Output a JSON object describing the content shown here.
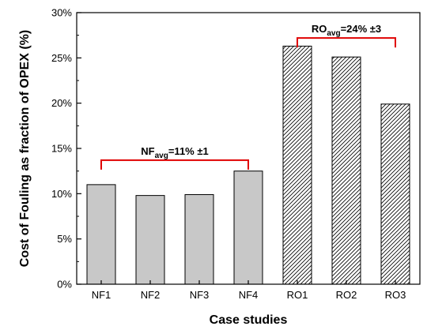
{
  "chart_data": {
    "type": "bar",
    "title": "",
    "xlabel": "Case studies",
    "ylabel": "Cost of Fouling as fraction of OPEX (%)",
    "categories": [
      "NF1",
      "NF2",
      "NF3",
      "NF4",
      "RO1",
      "RO2",
      "RO3"
    ],
    "values": [
      11.0,
      9.8,
      9.9,
      12.5,
      26.3,
      25.1,
      19.9
    ],
    "ylim": [
      0,
      30
    ],
    "y_ticks": [
      0,
      5,
      10,
      15,
      20,
      25,
      30
    ],
    "y_tick_labels": [
      "0%",
      "5%",
      "10%",
      "15%",
      "20%",
      "25%",
      "30%"
    ],
    "grid": false,
    "bar_styles": [
      "solid",
      "solid",
      "solid",
      "solid",
      "hatched",
      "hatched",
      "hatched"
    ],
    "colors": {
      "solid_fill": "#c8c8c8",
      "hatch_stroke": "#000000",
      "bracket": "#e00000"
    },
    "annotations": [
      {
        "main": "NF",
        "sub": "avg",
        "rest": "=11% ±1",
        "from": "NF1",
        "to": "NF4",
        "level": 13.7
      },
      {
        "main": "RO",
        "sub": "avg",
        "rest": "=24% ±3",
        "from": "RO1",
        "to": "RO3",
        "level": 27.2
      }
    ]
  }
}
